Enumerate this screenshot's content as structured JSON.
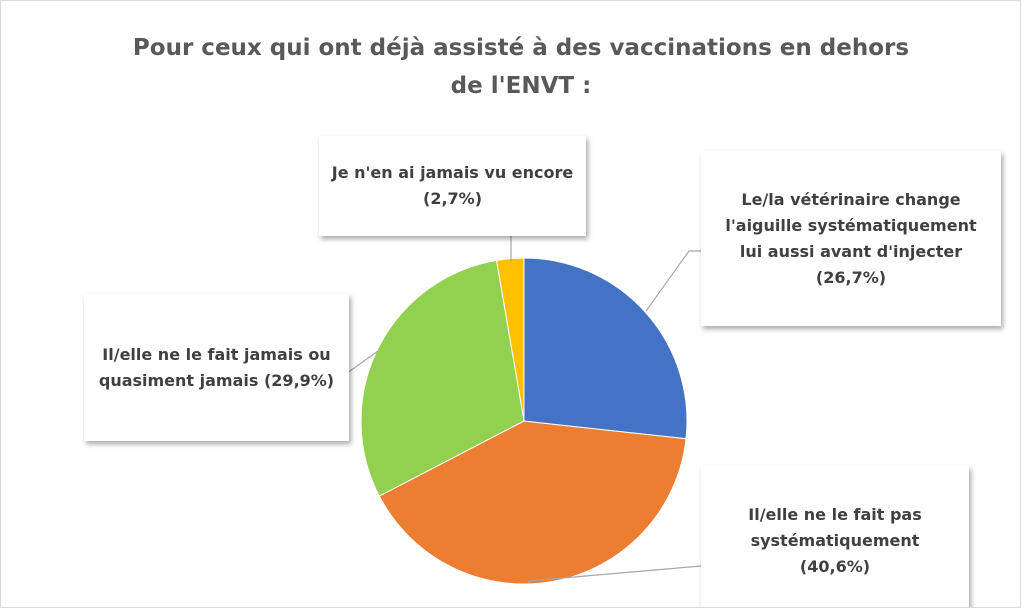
{
  "chart_data": {
    "type": "pie",
    "title": "Pour ceux qui ont déjà assisté à des vaccinations en dehors de l'ENVT :",
    "categories": [
      "Le/la vétérinaire change l'aiguille systématiquement lui aussi avant d'injecter",
      "Il/elle ne le fait pas systématiquement",
      "Il/elle ne le fait jamais ou quasiment jamais",
      "Je n'en ai jamais vu encore"
    ],
    "values": [
      26.7,
      40.6,
      29.9,
      2.7
    ],
    "value_labels": [
      "(26,7%)",
      "(40,6%)",
      "(29,9%)",
      "(2,7%)"
    ],
    "colors": [
      "#4472c4",
      "#ed7d31",
      "#92d050",
      "#ffc000"
    ]
  }
}
